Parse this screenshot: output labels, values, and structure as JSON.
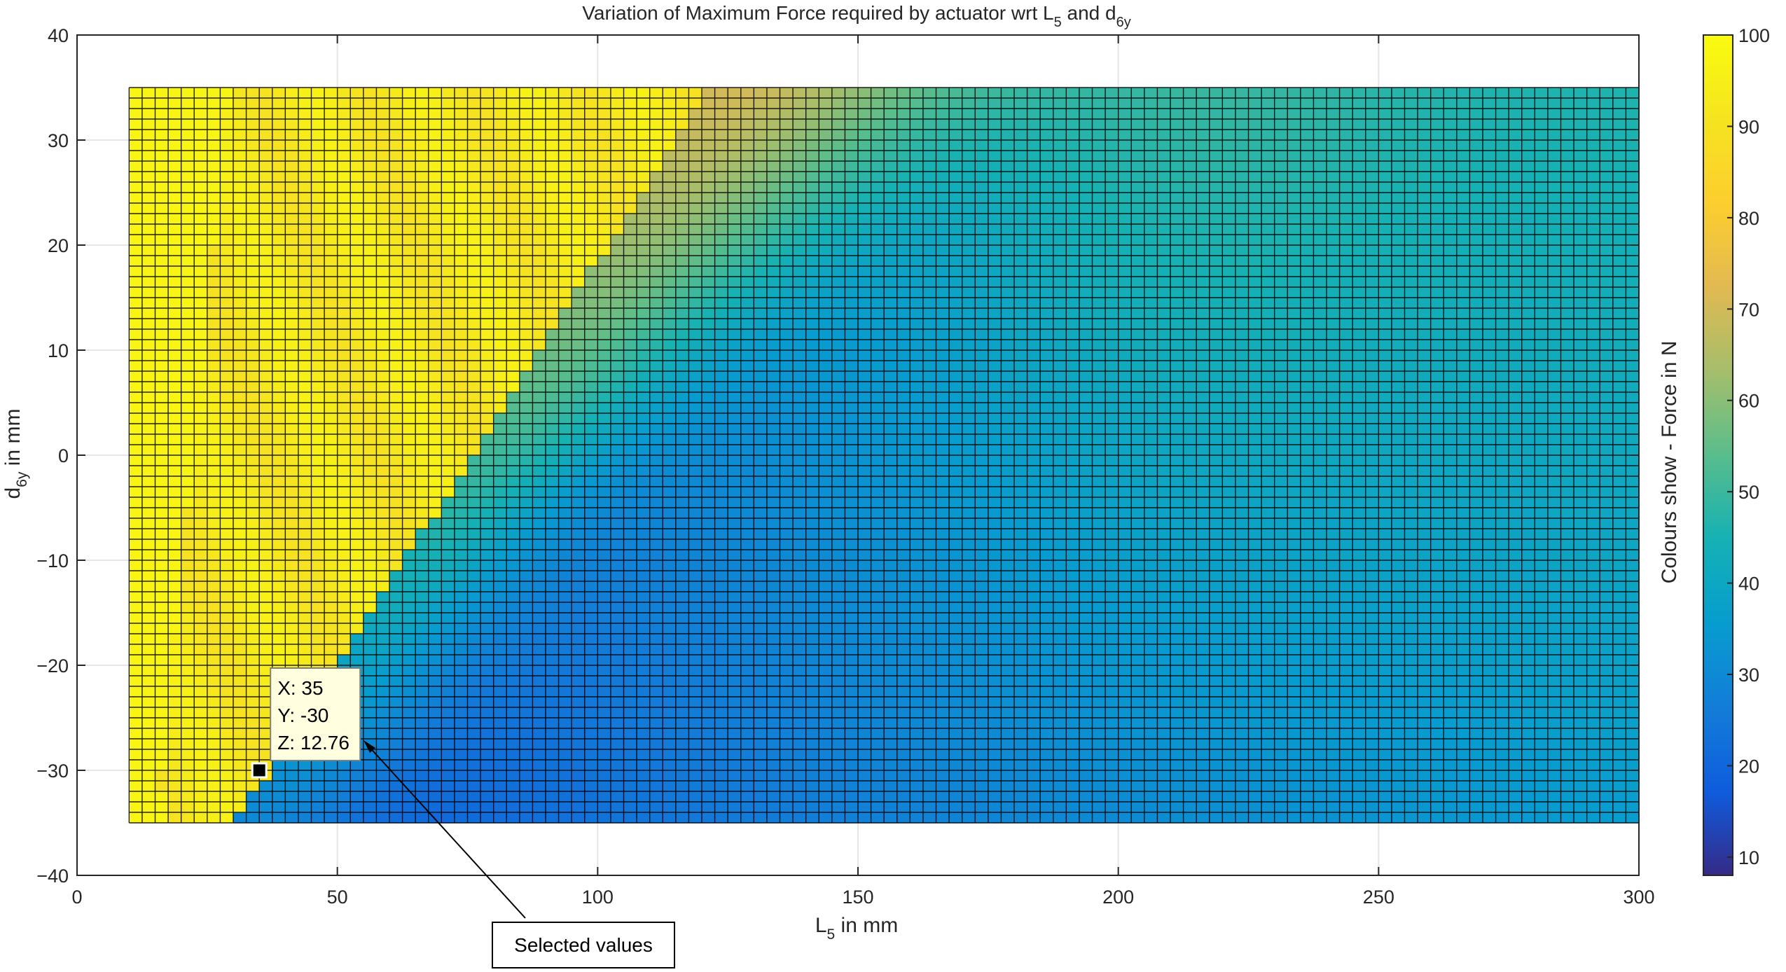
{
  "chart_data": {
    "type": "heatmap",
    "title": {
      "main": "Variation of Maximum Force required by actuator wrt L",
      "sub1": "5",
      "mid": " and d",
      "sub2": "6y"
    },
    "xlabel": {
      "main": "L",
      "sub": "5",
      "rest": " in mm"
    },
    "ylabel": {
      "main": "d",
      "sub": "6y",
      "rest": " in mm"
    },
    "colorbar_label": "Colours show - Force in N",
    "xlim": [
      0,
      300
    ],
    "ylim": [
      -40,
      40
    ],
    "xticks": [
      "0",
      "50",
      "100",
      "150",
      "200",
      "250",
      "300"
    ],
    "yticks": [
      "40",
      "30",
      "20",
      "10",
      "0",
      "−10",
      "−20",
      "−30",
      "−40"
    ],
    "xtick_values": [
      0,
      50,
      100,
      150,
      200,
      250,
      300
    ],
    "ytick_values": [
      40,
      30,
      20,
      10,
      0,
      -10,
      -20,
      -30,
      -40
    ],
    "grid": true,
    "data_range": {
      "x": [
        10,
        300
      ],
      "y": [
        -35,
        35
      ]
    },
    "grid_step": {
      "x": 2.5,
      "y": 1
    },
    "clim": [
      8,
      100
    ],
    "colorbar_ticks": [
      "10",
      "20",
      "30",
      "40",
      "50",
      "60",
      "70",
      "80",
      "90",
      "100"
    ],
    "colorbar_tick_values": [
      10,
      20,
      30,
      40,
      50,
      60,
      70,
      80,
      90,
      100
    ],
    "colormap": "parula",
    "datatip": {
      "x": 35,
      "y": -30,
      "line_x": "X: 35",
      "line_y": "Y: -30",
      "line_z": "Z: 12.76"
    },
    "annotation": {
      "text": "Selected values"
    }
  }
}
